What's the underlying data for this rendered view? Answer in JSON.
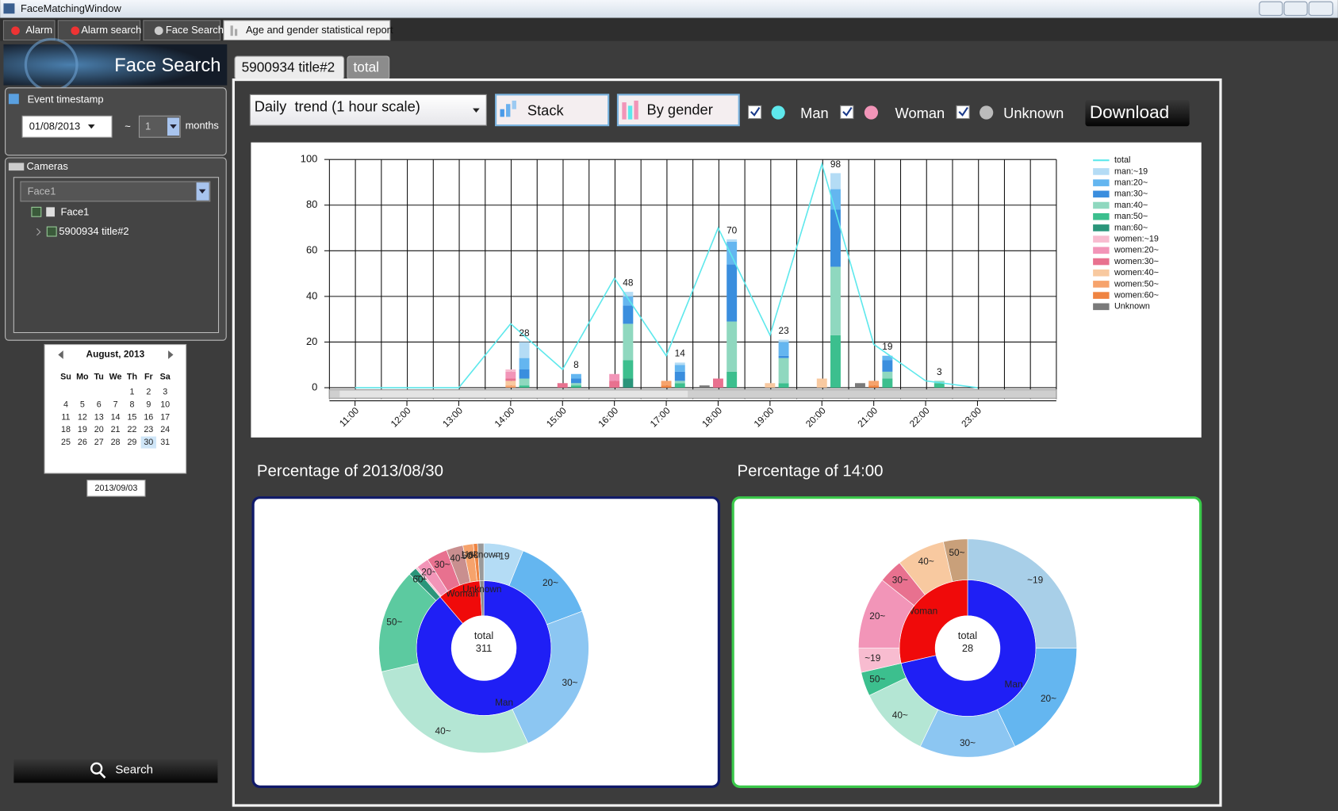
{
  "window": {
    "title": "FaceMatchingWindow"
  },
  "tabs": [
    "Alarm",
    "Alarm search",
    "Face Search",
    "Age and gender statistical report"
  ],
  "sidebar": {
    "header": "Face Search",
    "event_timestamp": {
      "label": "Event timestamp",
      "date": "01/08/2013",
      "separator": "~",
      "count": 1,
      "unit": "months"
    },
    "cameras": {
      "label": "Cameras",
      "selected": "Face1",
      "tree": [
        "Face1",
        "5900934 title#2"
      ]
    },
    "calendar": {
      "month": "August, 2013",
      "weekdays": [
        "Su",
        "Mo",
        "Tu",
        "We",
        "Th",
        "Fr",
        "Sa"
      ],
      "days": [
        1,
        2,
        3,
        4,
        5,
        6,
        7,
        8,
        9,
        10,
        11,
        12,
        13,
        14,
        15,
        16,
        17,
        18,
        19,
        20,
        21,
        22,
        23,
        24,
        25,
        26,
        27,
        28,
        29,
        30,
        31
      ],
      "today": "2013/09/03"
    },
    "search": "Search"
  },
  "sub_tabs": [
    "5900934 title#2",
    "total"
  ],
  "toolbar": {
    "mode": "Daily  trend (1 hour scale)",
    "stack": "Stack",
    "by_gender": "By gender",
    "filters": [
      "Man",
      "Woman",
      "Unknown"
    ],
    "download": "Download"
  },
  "chart_data": [
    {
      "type": "bar",
      "stacked": true,
      "grid": true,
      "legend": "right",
      "categories": [
        "11:00",
        "12:00",
        "13:00",
        "14:00",
        "15:00",
        "16:00",
        "17:00",
        "18:00",
        "19:00",
        "20:00",
        "21:00",
        "22:00",
        "23:00"
      ],
      "ylim": [
        -5,
        100
      ],
      "yticks": [
        0,
        20,
        40,
        60,
        80,
        100
      ],
      "series": [
        {
          "name": "total",
          "type": "line",
          "color": "#5ee8ec",
          "values": [
            0,
            0,
            0,
            28,
            8,
            48,
            14,
            70,
            23,
            98,
            19,
            3,
            0
          ]
        },
        {
          "name": "man:~19",
          "group": "man",
          "color": "#b4dcf5",
          "values": [
            0,
            0,
            0,
            7,
            0,
            2,
            1,
            1,
            1,
            7,
            0,
            0,
            0
          ]
        },
        {
          "name": "man:20~",
          "group": "man",
          "color": "#64b6f0",
          "values": [
            0,
            0,
            0,
            5,
            2,
            4,
            3,
            10,
            6,
            9,
            2,
            0,
            0
          ]
        },
        {
          "name": "man:30~",
          "group": "man",
          "color": "#3a8ede",
          "values": [
            0,
            0,
            0,
            4,
            2,
            8,
            4,
            25,
            1,
            25,
            5,
            0,
            0
          ]
        },
        {
          "name": "man:40~",
          "group": "man",
          "color": "#8fd8bf",
          "values": [
            0,
            0,
            0,
            3,
            1,
            16,
            1,
            22,
            11,
            30,
            3,
            1,
            0
          ]
        },
        {
          "name": "man:50~",
          "group": "man",
          "color": "#3cbf8e",
          "values": [
            0,
            0,
            0,
            1,
            1,
            8,
            2,
            7,
            2,
            23,
            4,
            2,
            0
          ]
        },
        {
          "name": "man:60~",
          "group": "man",
          "color": "#2a957a",
          "values": [
            0,
            0,
            0,
            0,
            0,
            4,
            0,
            0,
            0,
            0,
            0,
            0,
            0
          ]
        },
        {
          "name": "women:~19",
          "group": "women",
          "color": "#f8bcd0",
          "values": [
            0,
            0,
            0,
            1,
            0,
            0,
            0,
            0,
            0,
            0,
            0,
            0,
            0
          ]
        },
        {
          "name": "women:20~",
          "group": "women",
          "color": "#f295b8",
          "values": [
            0,
            0,
            0,
            3,
            0,
            3,
            0,
            0,
            0,
            0,
            0,
            0,
            0
          ]
        },
        {
          "name": "women:30~",
          "group": "women",
          "color": "#e8718f",
          "values": [
            0,
            0,
            0,
            1,
            2,
            3,
            0,
            4,
            0,
            0,
            0,
            0,
            0
          ]
        },
        {
          "name": "women:40~",
          "group": "women",
          "color": "#f8c9a0",
          "values": [
            0,
            0,
            0,
            2,
            0,
            0,
            0,
            0,
            2,
            4,
            0,
            0,
            0
          ]
        },
        {
          "name": "women:50~",
          "group": "women",
          "color": "#f6a36c",
          "values": [
            0,
            0,
            0,
            1,
            0,
            0,
            2,
            0,
            0,
            0,
            2,
            0,
            0
          ]
        },
        {
          "name": "women:60~",
          "group": "women",
          "color": "#ef8442",
          "values": [
            0,
            0,
            0,
            0,
            0,
            0,
            1,
            0,
            0,
            0,
            1,
            0,
            0
          ]
        },
        {
          "name": "Unknown",
          "group": "unknown",
          "color": "#7a7a7a",
          "values": [
            0,
            0,
            0,
            0,
            0,
            0,
            0,
            1,
            0,
            0,
            2,
            0,
            0
          ]
        }
      ]
    },
    {
      "type": "pie",
      "title": "Percentage of 2013/08/30",
      "center_label": "total",
      "total": 311,
      "rings": [
        {
          "categories": [
            "Man",
            "Woman",
            "Unknown"
          ],
          "values": [
            276,
            32,
            3
          ],
          "colors": [
            "#1f1ff5",
            "#f00a0a",
            "#8a8a8a"
          ]
        },
        {
          "categories": [
            "~19",
            "20~",
            "30~",
            "40~",
            "50~",
            "60~",
            "~19",
            "20~",
            "30~",
            "40~",
            "50~",
            "60~",
            "Unknown"
          ],
          "values": [
            19,
            41,
            74,
            88,
            50,
            4,
            1,
            6,
            10,
            8,
            5,
            2,
            3
          ],
          "colors": [
            "#b4dcf5",
            "#64b6f0",
            "#8cc6f2",
            "#b4e6d4",
            "#5ccaa0",
            "#2a957a",
            "#f8bcd0",
            "#f295b8",
            "#e8718f",
            "#c98f8f",
            "#f6a36c",
            "#ef8442",
            "#9a9a9a"
          ]
        }
      ]
    },
    {
      "type": "pie",
      "title": "Percentage of 14:00",
      "center_label": "total",
      "total": 28,
      "rings": [
        {
          "categories": [
            "Man",
            "Woman"
          ],
          "values": [
            20,
            8
          ],
          "colors": [
            "#1f1ff5",
            "#f00a0a"
          ]
        },
        {
          "categories": [
            "~19",
            "20~",
            "30~",
            "40~",
            "50~",
            "~19",
            "20~",
            "30~",
            "40~",
            "50~"
          ],
          "values": [
            7,
            5,
            4,
            3,
            1,
            1,
            3,
            1,
            2,
            1
          ],
          "colors": [
            "#a8cfe8",
            "#64b6f0",
            "#8cc6f2",
            "#b4e6d4",
            "#3cbf8e",
            "#f8bcd0",
            "#f295b8",
            "#e8718f",
            "#f8c9a0",
            "#c9a07a"
          ]
        }
      ]
    }
  ]
}
